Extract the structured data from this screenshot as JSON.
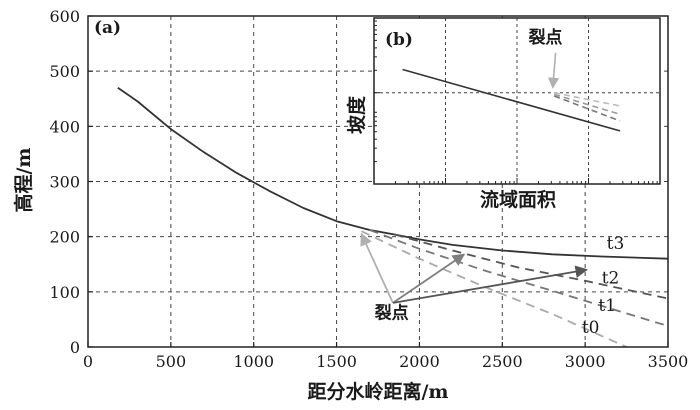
{
  "chart_data": [
    {
      "panel": "(a)",
      "type": "line",
      "title": "",
      "xlabel": "距分水岭距离/m",
      "ylabel": "高程/m",
      "xlim": [
        0,
        3500
      ],
      "ylim": [
        0,
        600
      ],
      "xticks": [
        0,
        500,
        1000,
        1500,
        2000,
        2500,
        3000,
        3500
      ],
      "yticks": [
        0,
        100,
        200,
        300,
        400,
        500,
        600
      ],
      "grid": true,
      "series": [
        {
          "name": "t3",
          "style": "solid",
          "color": "#333333",
          "x": [
            180,
            300,
            500,
            700,
            900,
            1100,
            1300,
            1500,
            1700,
            1850,
            2000,
            2200,
            2500,
            2800,
            3100,
            3500
          ],
          "y": [
            470,
            445,
            395,
            353,
            315,
            282,
            252,
            228,
            212,
            204,
            195,
            185,
            175,
            168,
            164,
            160
          ]
        },
        {
          "name": "t2",
          "style": "dashed",
          "color": "#555555",
          "x": [
            1850,
            2200,
            2600,
            3000,
            3500
          ],
          "y": [
            204,
            175,
            144,
            120,
            88
          ]
        },
        {
          "name": "t1",
          "style": "dashed",
          "color": "#777777",
          "x": [
            1700,
            2000,
            2400,
            2800,
            3500
          ],
          "y": [
            212,
            178,
            138,
            102,
            38
          ]
        },
        {
          "name": "t0",
          "style": "dashed",
          "color": "#aaaaaa",
          "x": [
            1650,
            2000,
            2400,
            2800,
            3250
          ],
          "y": [
            210,
            160,
            108,
            60,
            0
          ]
        }
      ],
      "series_labels": [
        {
          "text": "t3",
          "x": 3130,
          "y": 178
        },
        {
          "text": "t2",
          "x": 3100,
          "y": 115
        },
        {
          "text": "t1",
          "x": 3080,
          "y": 65
        },
        {
          "text": "t0",
          "x": 2980,
          "y": 25
        }
      ],
      "annotations": [
        {
          "text": "裂点",
          "x": 1730,
          "y": 52,
          "arrow_origin": [
            1840,
            80
          ],
          "arrows": [
            {
              "to": [
                1650,
                205
              ],
              "color": "#b0b0b0"
            },
            {
              "to": [
                2270,
                168
              ],
              "color": "#808080"
            },
            {
              "to": [
                3010,
                140
              ],
              "color": "#555555"
            }
          ]
        }
      ]
    },
    {
      "panel": "(b)",
      "type": "line",
      "title": "",
      "xlabel": "流域面积",
      "ylabel": "坡度",
      "log_scale": true,
      "xlim": [
        0,
        1
      ],
      "ylim": [
        0,
        1
      ],
      "grid": true,
      "grid_x": [
        0.25,
        0.5,
        0.75
      ],
      "grid_y": [
        0.55
      ],
      "series": [
        {
          "name": "main",
          "style": "solid",
          "color": "#333333",
          "x": [
            0.1,
            0.86
          ],
          "y": [
            0.69,
            0.32
          ]
        },
        {
          "name": "t2-seg",
          "style": "dashed",
          "color": "#777777",
          "x": [
            0.63,
            0.86
          ],
          "y": [
            0.53,
            0.38
          ]
        },
        {
          "name": "t1-seg",
          "style": "dashed",
          "color": "#999999",
          "x": [
            0.63,
            0.86
          ],
          "y": [
            0.54,
            0.42
          ]
        },
        {
          "name": "t0-seg",
          "style": "dashed",
          "color": "#bbbbbb",
          "x": [
            0.63,
            0.86
          ],
          "y": [
            0.55,
            0.47
          ]
        }
      ],
      "annotations": [
        {
          "text": "裂点",
          "x": 0.54,
          "y": 0.85,
          "arrow_from": [
            0.635,
            0.79
          ],
          "arrow_to": [
            0.625,
            0.58
          ]
        }
      ]
    }
  ]
}
